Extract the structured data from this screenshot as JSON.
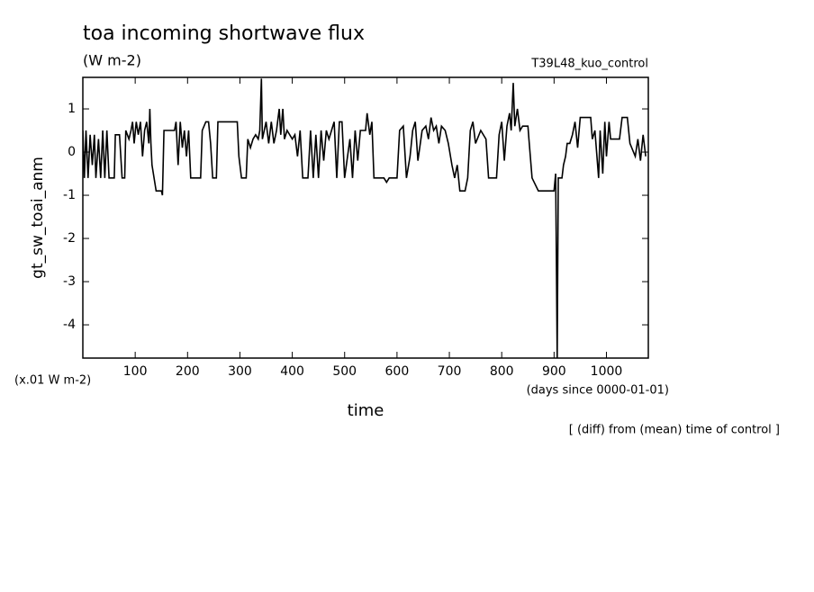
{
  "chart_data": {
    "type": "line",
    "title": "toa incoming shortwave flux",
    "subtitle": "(W m-2)",
    "run_label": "T39L48_kuo_control",
    "y_label": "gt_sw_toai_anm",
    "x_label": "time",
    "y_unit_note": "(x.01 W m-2)",
    "x_unit_note": "(days since 0000-01-01)",
    "footnote": "[ (diff) from (mean) time of control ]",
    "color": "#000000",
    "xlim": [
      0,
      1080
    ],
    "ylim": [
      -4.77,
      1.73
    ],
    "xticks": [
      100,
      200,
      300,
      400,
      500,
      600,
      700,
      800,
      900,
      1000
    ],
    "yticks": [
      1,
      0,
      -1,
      -2,
      -3,
      -4
    ],
    "x": [
      0,
      3,
      6,
      10,
      14,
      18,
      22,
      25,
      30,
      34,
      38,
      42,
      46,
      50,
      60,
      62,
      70,
      75,
      80,
      82,
      88,
      92,
      95,
      98,
      102,
      106,
      110,
      114,
      118,
      122,
      126,
      128,
      130,
      132,
      140,
      150,
      152,
      155,
      175,
      178,
      182,
      186,
      190,
      194,
      198,
      202,
      206,
      225,
      228,
      235,
      240,
      244,
      248,
      255,
      258,
      295,
      298,
      303,
      312,
      315,
      320,
      325,
      330,
      335,
      338,
      341,
      343,
      350,
      355,
      360,
      365,
      370,
      375,
      378,
      382,
      385,
      390,
      400,
      405,
      410,
      415,
      420,
      430,
      435,
      440,
      445,
      450,
      455,
      460,
      465,
      470,
      475,
      480,
      485,
      490,
      495,
      500,
      510,
      515,
      520,
      525,
      530,
      540,
      543,
      548,
      552,
      556,
      575,
      580,
      585,
      600,
      605,
      612,
      618,
      625,
      630,
      635,
      640,
      648,
      655,
      660,
      665,
      670,
      675,
      680,
      685,
      692,
      698,
      705,
      710,
      715,
      720,
      730,
      735,
      740,
      745,
      750,
      760,
      770,
      775,
      790,
      795,
      800,
      805,
      810,
      815,
      818,
      822,
      825,
      830,
      835,
      840,
      850,
      852,
      858,
      870,
      900,
      903,
      906,
      908,
      915,
      918,
      922,
      925,
      930,
      935,
      940,
      945,
      950,
      970,
      973,
      978,
      985,
      988,
      993,
      997,
      1000,
      1005,
      1008,
      1015,
      1025,
      1030,
      1040,
      1045,
      1055,
      1060,
      1065,
      1070,
      1075
    ],
    "values": [
      0.5,
      -0.6,
      0.5,
      -0.6,
      0.4,
      -0.3,
      0.4,
      -0.6,
      0.3,
      -0.6,
      0.5,
      -0.6,
      0.5,
      -0.6,
      -0.6,
      0.4,
      0.4,
      -0.6,
      -0.6,
      0.5,
      0.3,
      0.5,
      0.7,
      0.2,
      0.7,
      0.4,
      0.7,
      -0.1,
      0.5,
      0.7,
      0.2,
      1.0,
      0.2,
      -0.3,
      -0.9,
      -0.9,
      -1.0,
      0.5,
      0.5,
      0.7,
      -0.3,
      0.7,
      0.1,
      0.5,
      -0.1,
      0.5,
      -0.6,
      -0.6,
      0.5,
      0.7,
      0.7,
      0.2,
      -0.6,
      -0.6,
      0.7,
      0.7,
      -0.1,
      -0.6,
      -0.6,
      0.3,
      0.1,
      0.3,
      0.4,
      0.3,
      0.5,
      1.7,
      0.3,
      0.7,
      0.2,
      0.7,
      0.2,
      0.5,
      1.0,
      0.4,
      1.0,
      0.3,
      0.5,
      0.3,
      0.4,
      -0.1,
      0.5,
      -0.6,
      -0.6,
      0.5,
      -0.6,
      0.4,
      -0.6,
      0.5,
      -0.2,
      0.5,
      0.3,
      0.5,
      0.7,
      -0.6,
      0.7,
      0.7,
      -0.6,
      0.3,
      -0.6,
      0.5,
      -0.2,
      0.5,
      0.5,
      0.9,
      0.4,
      0.7,
      -0.6,
      -0.6,
      -0.7,
      -0.6,
      -0.6,
      0.5,
      0.6,
      -0.6,
      -0.1,
      0.5,
      0.7,
      -0.2,
      0.5,
      0.6,
      0.3,
      0.8,
      0.5,
      0.6,
      0.2,
      0.6,
      0.5,
      0.2,
      -0.3,
      -0.6,
      -0.3,
      -0.9,
      -0.9,
      -0.6,
      0.5,
      0.7,
      0.2,
      0.5,
      0.3,
      -0.6,
      -0.6,
      0.4,
      0.7,
      -0.2,
      0.6,
      0.9,
      0.5,
      1.6,
      0.6,
      1.0,
      0.5,
      0.6,
      0.6,
      0.3,
      -0.6,
      -0.9,
      -0.9,
      -0.5,
      -4.77,
      -0.6,
      -0.6,
      -0.3,
      -0.1,
      0.2,
      0.2,
      0.4,
      0.7,
      0.1,
      0.8,
      0.8,
      0.3,
      0.5,
      -0.6,
      0.5,
      -0.5,
      0.7,
      -0.1,
      0.7,
      0.3,
      0.3,
      0.3,
      0.8,
      0.8,
      0.2,
      -0.1,
      0.3,
      -0.2,
      0.4,
      -0.1
    ]
  }
}
